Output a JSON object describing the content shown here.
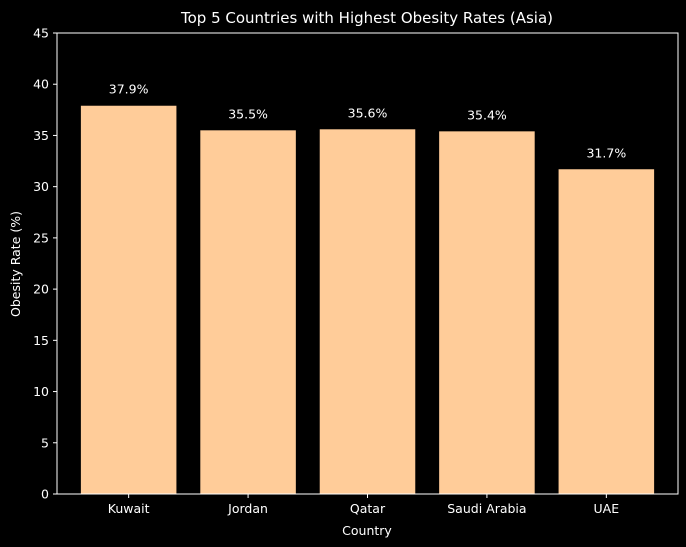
{
  "chart_data": {
    "type": "bar",
    "title": "Top 5 Countries with Highest Obesity Rates (Asia)",
    "xlabel": "Country",
    "ylabel": "Obesity Rate (%)",
    "categories": [
      "Kuwait",
      "Jordan",
      "Qatar",
      "Saudi Arabia",
      "UAE"
    ],
    "values": [
      37.9,
      35.5,
      35.6,
      35.4,
      31.7
    ],
    "value_labels": [
      "37.9%",
      "35.5%",
      "35.6%",
      "35.4%",
      "31.7%"
    ],
    "ylim": [
      0,
      45
    ],
    "yticks": [
      0,
      5,
      10,
      15,
      20,
      25,
      30,
      35,
      40,
      45
    ],
    "grid": false,
    "legend": "none",
    "colors": {
      "background": "#000000",
      "bar": "#FFCC99",
      "axis": "#ffffff",
      "text": "#ffffff"
    }
  }
}
